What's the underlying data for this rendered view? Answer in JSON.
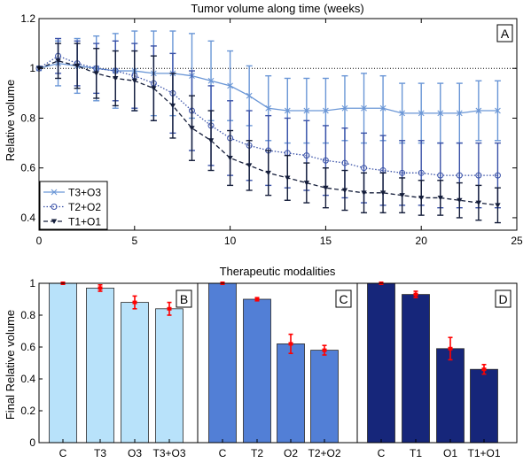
{
  "chart_data": [
    {
      "type": "line",
      "title": "Tumor volume along time (weeks)",
      "xlabel": "",
      "ylabel": "Relative volume",
      "panel_label": "A",
      "xlim": [
        0,
        25
      ],
      "ylim": [
        0.35,
        1.2
      ],
      "xticks": [
        0,
        5,
        10,
        15,
        20,
        25
      ],
      "yticks": [
        0.4,
        0.6,
        0.8,
        1,
        1.2
      ],
      "reference_line": 1,
      "legend_position": "bottom-left",
      "x": [
        0,
        1,
        2,
        3,
        4,
        5,
        6,
        7,
        8,
        9,
        10,
        11,
        12,
        13,
        14,
        15,
        16,
        17,
        18,
        19,
        20,
        21,
        22,
        23,
        24
      ],
      "series": [
        {
          "name": "T3+O3",
          "color": "#6a96d6",
          "marker": "x",
          "linestyle": "solid",
          "values": [
            1.0,
            1.02,
            1.01,
            1.0,
            0.99,
            0.99,
            0.98,
            0.98,
            0.97,
            0.95,
            0.93,
            0.89,
            0.84,
            0.83,
            0.83,
            0.83,
            0.84,
            0.84,
            0.84,
            0.82,
            0.82,
            0.82,
            0.82,
            0.83,
            0.83
          ],
          "error": [
            0,
            0.09,
            0.11,
            0.13,
            0.15,
            0.16,
            0.17,
            0.17,
            0.17,
            0.16,
            0.14,
            0.12,
            0.13,
            0.13,
            0.13,
            0.13,
            0.13,
            0.14,
            0.13,
            0.12,
            0.12,
            0.12,
            0.12,
            0.12,
            0.12
          ]
        },
        {
          "name": "T2+O2",
          "color": "#3a52a8",
          "marker": "o",
          "linestyle": "dotted",
          "values": [
            1.0,
            1.05,
            1.02,
            1.0,
            0.99,
            0.97,
            0.94,
            0.9,
            0.83,
            0.77,
            0.72,
            0.69,
            0.67,
            0.66,
            0.65,
            0.63,
            0.62,
            0.6,
            0.59,
            0.58,
            0.58,
            0.57,
            0.57,
            0.57,
            0.57
          ],
          "error": [
            0,
            0.07,
            0.09,
            0.1,
            0.12,
            0.13,
            0.15,
            0.16,
            0.16,
            0.16,
            0.15,
            0.14,
            0.14,
            0.14,
            0.14,
            0.14,
            0.14,
            0.14,
            0.14,
            0.13,
            0.13,
            0.13,
            0.13,
            0.13,
            0.13
          ]
        },
        {
          "name": "T1+O1",
          "color": "#141d3a",
          "marker": "v",
          "linestyle": "dashed",
          "values": [
            1.0,
            1.03,
            1.01,
            0.98,
            0.96,
            0.95,
            0.92,
            0.85,
            0.76,
            0.71,
            0.64,
            0.61,
            0.58,
            0.56,
            0.54,
            0.52,
            0.51,
            0.5,
            0.5,
            0.49,
            0.48,
            0.48,
            0.47,
            0.46,
            0.45
          ],
          "error": [
            0,
            0.07,
            0.09,
            0.1,
            0.11,
            0.12,
            0.13,
            0.13,
            0.13,
            0.12,
            0.11,
            0.1,
            0.09,
            0.09,
            0.08,
            0.08,
            0.08,
            0.08,
            0.08,
            0.07,
            0.07,
            0.07,
            0.07,
            0.07,
            0.07
          ]
        }
      ]
    },
    {
      "type": "bar",
      "title": "Therapeutic modalities",
      "ylabel": "Final Relative volume",
      "ylim": [
        0,
        1
      ],
      "yticks": [
        0,
        0.2,
        0.4,
        0.6,
        0.8,
        1
      ],
      "error_color": "#ff0000",
      "groups": [
        {
          "panel_label": "B",
          "color": "#b8e2fa",
          "categories": [
            "C",
            "T3",
            "O3",
            "T3+O3"
          ],
          "values": [
            1.0,
            0.97,
            0.88,
            0.84
          ],
          "error": [
            0.005,
            0.02,
            0.04,
            0.04
          ]
        },
        {
          "panel_label": "C",
          "color": "#527fd6",
          "categories": [
            "C",
            "T2",
            "O2",
            "T2+O2"
          ],
          "values": [
            1.0,
            0.9,
            0.62,
            0.58
          ],
          "error": [
            0.005,
            0.01,
            0.06,
            0.03
          ]
        },
        {
          "panel_label": "D",
          "color": "#16267a",
          "categories": [
            "C",
            "T1",
            "O1",
            "T1+O1"
          ],
          "values": [
            1.0,
            0.93,
            0.59,
            0.46
          ],
          "error": [
            0.005,
            0.02,
            0.07,
            0.03
          ]
        }
      ]
    }
  ]
}
